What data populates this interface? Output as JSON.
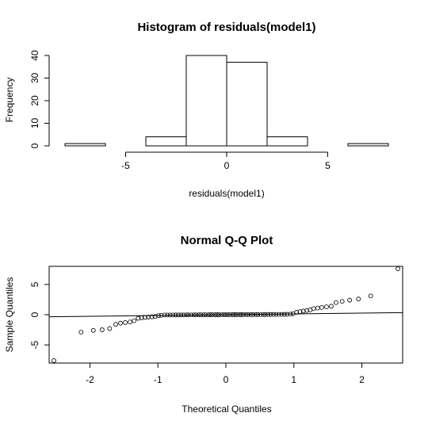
{
  "chart_data": [
    {
      "type": "bar",
      "title": "Histogram of residuals(model1)",
      "xlabel": "residuals(model1)",
      "ylabel": "Frequency",
      "bin_edges": [
        -8,
        -6,
        -4,
        -2,
        0,
        2,
        4,
        6,
        8
      ],
      "values": [
        1,
        0,
        4,
        40,
        37,
        4,
        0,
        1
      ],
      "xlim": [
        -8,
        8
      ],
      "ylim": [
        0,
        40
      ],
      "x_ticks": [
        -5,
        0,
        5
      ],
      "x_tick_labels": [
        "-5",
        "0",
        "5"
      ],
      "y_ticks": [
        0,
        10,
        20,
        30,
        40
      ],
      "y_tick_labels": [
        "0",
        "10",
        "20",
        "30",
        "40"
      ],
      "grid": false
    },
    {
      "type": "scatter",
      "title": "Normal Q-Q Plot",
      "xlabel": "Theoretical Quantiles",
      "ylabel": "Sample Quantiles",
      "xlim": [
        -2.6,
        2.6
      ],
      "ylim": [
        -8,
        8
      ],
      "x_ticks": [
        -2,
        -1,
        0,
        1,
        2
      ],
      "x_tick_labels": [
        "-2",
        "-1",
        "0",
        "1",
        "2"
      ],
      "y_ticks": [
        -5,
        0,
        5
      ],
      "y_tick_labels": [
        "-5",
        "0",
        "5"
      ],
      "reference_line": {
        "x": [
          -2.6,
          2.6
        ],
        "y": [
          -0.35,
          0.35
        ]
      },
      "points": [
        [
          -2.53,
          -7.6
        ],
        [
          -2.13,
          -2.9
        ],
        [
          -1.95,
          -2.6
        ],
        [
          -1.82,
          -2.5
        ],
        [
          -1.71,
          -2.3
        ],
        [
          -1.62,
          -1.6
        ],
        [
          -1.55,
          -1.4
        ],
        [
          -1.48,
          -1.3
        ],
        [
          -1.41,
          -1.2
        ],
        [
          -1.35,
          -1.0
        ],
        [
          -1.29,
          -0.6
        ],
        [
          -1.24,
          -0.5
        ],
        [
          -1.19,
          -0.45
        ],
        [
          -1.14,
          -0.4
        ],
        [
          -1.09,
          -0.35
        ],
        [
          -1.04,
          -0.3
        ],
        [
          -0.99,
          -0.15
        ],
        [
          -0.95,
          -0.1
        ],
        [
          -0.9,
          -0.05
        ],
        [
          -0.86,
          -0.05
        ],
        [
          -0.82,
          -0.05
        ],
        [
          -0.78,
          -0.05
        ],
        [
          -0.74,
          -0.04
        ],
        [
          -0.7,
          -0.04
        ],
        [
          -0.66,
          -0.04
        ],
        [
          -0.62,
          -0.04
        ],
        [
          -0.58,
          -0.03
        ],
        [
          -0.55,
          -0.03
        ],
        [
          -0.51,
          -0.03
        ],
        [
          -0.47,
          -0.03
        ],
        [
          -0.44,
          -0.03
        ],
        [
          -0.4,
          -0.02
        ],
        [
          -0.37,
          -0.02
        ],
        [
          -0.33,
          -0.02
        ],
        [
          -0.3,
          -0.02
        ],
        [
          -0.26,
          -0.02
        ],
        [
          -0.23,
          -0.01
        ],
        [
          -0.2,
          -0.01
        ],
        [
          -0.16,
          -0.01
        ],
        [
          -0.13,
          -0.01
        ],
        [
          -0.1,
          -0.01
        ],
        [
          -0.06,
          0.0
        ],
        [
          -0.03,
          0.0
        ],
        [
          0.0,
          0.0
        ],
        [
          0.03,
          0.0
        ],
        [
          0.06,
          0.0
        ],
        [
          0.1,
          0.01
        ],
        [
          0.13,
          0.01
        ],
        [
          0.16,
          0.01
        ],
        [
          0.2,
          0.01
        ],
        [
          0.23,
          0.01
        ],
        [
          0.26,
          0.02
        ],
        [
          0.3,
          0.02
        ],
        [
          0.33,
          0.02
        ],
        [
          0.37,
          0.02
        ],
        [
          0.4,
          0.02
        ],
        [
          0.44,
          0.03
        ],
        [
          0.47,
          0.03
        ],
        [
          0.51,
          0.03
        ],
        [
          0.55,
          0.03
        ],
        [
          0.58,
          0.03
        ],
        [
          0.62,
          0.04
        ],
        [
          0.66,
          0.04
        ],
        [
          0.7,
          0.04
        ],
        [
          0.74,
          0.05
        ],
        [
          0.78,
          0.05
        ],
        [
          0.82,
          0.05
        ],
        [
          0.86,
          0.06
        ],
        [
          0.9,
          0.06
        ],
        [
          0.95,
          0.1
        ],
        [
          0.99,
          0.15
        ],
        [
          1.04,
          0.4
        ],
        [
          1.09,
          0.5
        ],
        [
          1.14,
          0.6
        ],
        [
          1.19,
          0.7
        ],
        [
          1.24,
          0.8
        ],
        [
          1.29,
          1.0
        ],
        [
          1.35,
          1.1
        ],
        [
          1.41,
          1.2
        ],
        [
          1.48,
          1.3
        ],
        [
          1.55,
          1.4
        ],
        [
          1.62,
          2.0
        ],
        [
          1.71,
          2.2
        ],
        [
          1.82,
          2.4
        ],
        [
          1.95,
          2.6
        ],
        [
          2.13,
          3.1
        ],
        [
          2.53,
          7.6
        ]
      ],
      "grid": false
    }
  ]
}
